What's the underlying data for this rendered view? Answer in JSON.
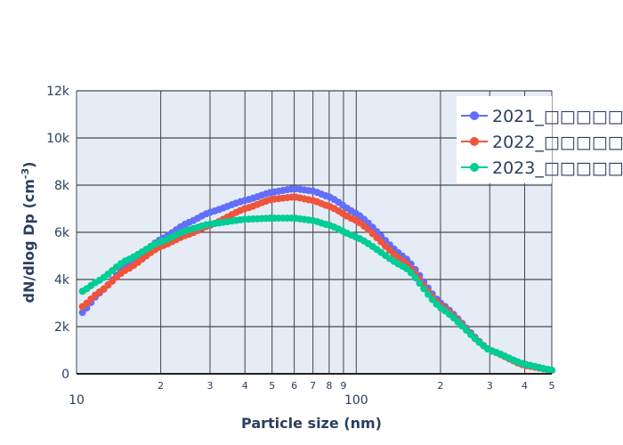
{
  "chart_data": {
    "type": "line",
    "title": "",
    "xlabel": "Particle size (nm)",
    "ylabel": "dN/dlog Dp (cm",
    "ylabel_sup": "-3",
    "ylabel_end": ")",
    "xscale": "log",
    "xlim": [
      10,
      500
    ],
    "ylim": [
      0,
      12000
    ],
    "yticks": [
      0,
      2000,
      4000,
      6000,
      8000,
      10000,
      12000
    ],
    "ytick_labels": [
      "0",
      "2k",
      "4k",
      "6k",
      "8k",
      "10k",
      "12k"
    ],
    "xticks_major": [
      {
        "v": 10,
        "label": "10"
      },
      {
        "v": 100,
        "label": "100"
      }
    ],
    "xticks_minor": [
      {
        "v": 20,
        "label": "2"
      },
      {
        "v": 30,
        "label": "3"
      },
      {
        "v": 40,
        "label": "4"
      },
      {
        "v": 50,
        "label": "5"
      },
      {
        "v": 60,
        "label": "6"
      },
      {
        "v": 70,
        "label": "7"
      },
      {
        "v": 80,
        "label": "8"
      },
      {
        "v": 90,
        "label": "9"
      },
      {
        "v": 200,
        "label": "2"
      },
      {
        "v": 300,
        "label": "3"
      },
      {
        "v": 400,
        "label": "4"
      },
      {
        "v": 500,
        "label": "5"
      }
    ],
    "grid": true,
    "legend_position": "top-right",
    "x": [
      10.5,
      12,
      15,
      20,
      25,
      30,
      40,
      50,
      60,
      70,
      80,
      100,
      150,
      200,
      300,
      400,
      500
    ],
    "series": [
      {
        "name": "2021_□□□□□",
        "color": "#636efa",
        "values": [
          2600,
          3400,
          4550,
          5700,
          6400,
          6850,
          7350,
          7700,
          7850,
          7750,
          7500,
          6800,
          4900,
          3000,
          1000,
          400,
          150
        ]
      },
      {
        "name": "2022_□□□□□",
        "color": "#ef553b",
        "values": [
          2850,
          3450,
          4400,
          5400,
          5900,
          6300,
          7000,
          7400,
          7500,
          7350,
          7100,
          6500,
          4700,
          2900,
          1000,
          350,
          150
        ]
      },
      {
        "name": "2023_□□□□□",
        "color": "#00cc96",
        "values": [
          3500,
          3950,
          4800,
          5600,
          6100,
          6350,
          6550,
          6600,
          6600,
          6500,
          6300,
          5800,
          4500,
          2800,
          1000,
          400,
          150
        ]
      }
    ]
  }
}
